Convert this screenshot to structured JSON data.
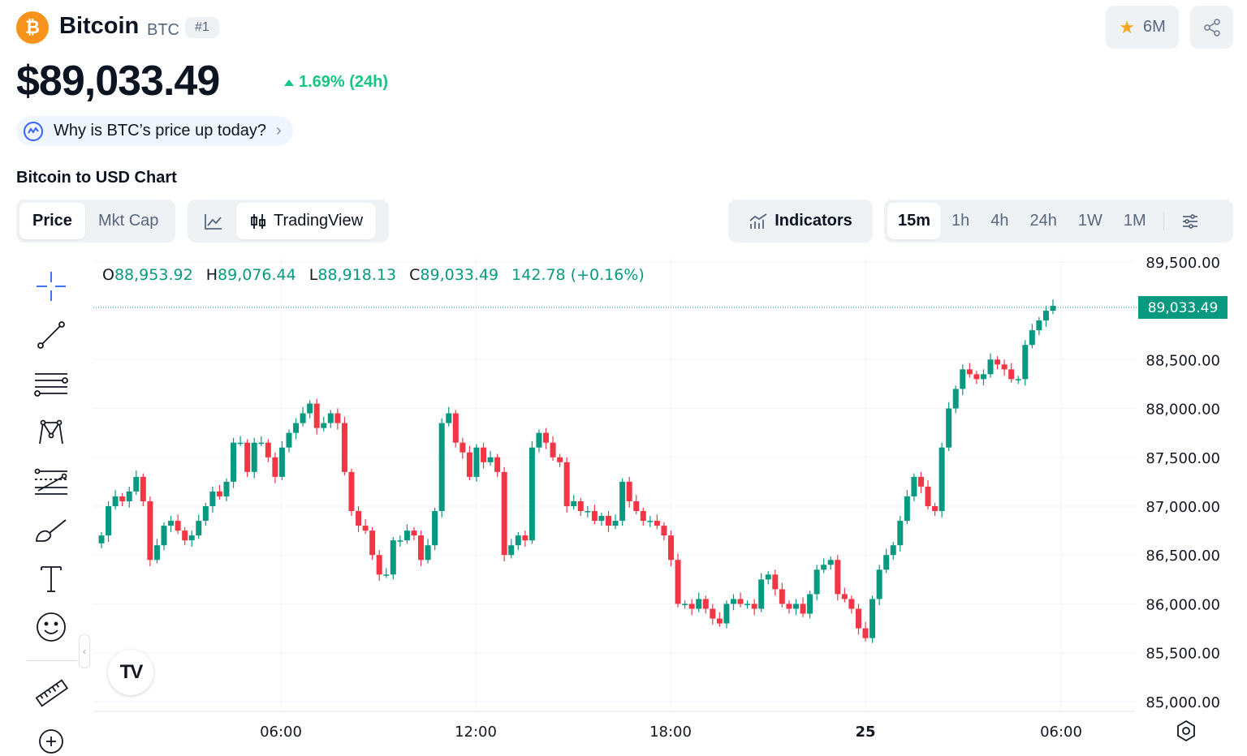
{
  "header": {
    "coin_logo_glyph": "₿",
    "coin_name": "Bitcoin",
    "coin_symbol": "BTC",
    "rank": "#1",
    "watchlist_count": "6M",
    "price": "$89,033.49",
    "change": "1.69% (24h)",
    "why_prompt": "Why is BTC’s price up today?"
  },
  "chart_heading": "Bitcoin to USD Chart",
  "toolbar": {
    "price_tabs": [
      "Price",
      "Mkt Cap"
    ],
    "tradingview_label": "TradingView",
    "indicators_label": "Indicators",
    "timeframes": [
      "15m",
      "1h",
      "4h",
      "24h",
      "1W",
      "1M"
    ]
  },
  "ohlc": {
    "o_label": "O",
    "o": "88,953.92",
    "h_label": "H",
    "h": "89,076.44",
    "l_label": "L",
    "l": "88,918.13",
    "c_label": "C",
    "c": "89,033.49",
    "change": "142.78 (+0.16%)"
  },
  "colors": {
    "up": "#089981",
    "down": "#f23645",
    "accent_green": "#16c784",
    "brand_orange": "#f7931a"
  },
  "tv_logo_text": "TV",
  "chart_data": {
    "type": "candlestick",
    "interval": "15m",
    "x_ticks": [
      "06:00",
      "12:00",
      "18:00",
      "25",
      "06:00"
    ],
    "y_ticks": [
      "89,500.00",
      "88,500.00",
      "88,000.00",
      "87,500.00",
      "87,000.00",
      "86,500.00",
      "86,000.00",
      "85,500.00",
      "85,000.00"
    ],
    "ylim": [
      84900,
      89540
    ],
    "last_price_label": "89,033.49",
    "last_price": 89033.49,
    "closes": [
      86700,
      87000,
      87100,
      87050,
      87150,
      87300,
      87050,
      86450,
      86600,
      86800,
      86850,
      86750,
      86650,
      86700,
      86850,
      87000,
      87150,
      87100,
      87250,
      87650,
      87650,
      87350,
      87650,
      87650,
      87500,
      87300,
      87600,
      87750,
      87850,
      87950,
      88050,
      87800,
      87850,
      87950,
      87850,
      87350,
      86950,
      86800,
      86750,
      86500,
      86300,
      86300,
      86650,
      86650,
      86750,
      86700,
      86450,
      86600,
      86950,
      87850,
      87950,
      87650,
      87550,
      87300,
      87600,
      87450,
      87500,
      87350,
      86500,
      86600,
      86700,
      86650,
      87600,
      87750,
      87650,
      87500,
      87450,
      87000,
      87050,
      86950,
      86950,
      86850,
      86900,
      86800,
      86850,
      87250,
      87050,
      86950,
      86850,
      86850,
      86800,
      86700,
      86450,
      86000,
      86000,
      85950,
      86050,
      85950,
      85850,
      85800,
      86000,
      86050,
      86000,
      86000,
      85950,
      86250,
      86300,
      86150,
      86000,
      85950,
      86000,
      85900,
      86100,
      86350,
      86400,
      86450,
      86100,
      86050,
      85950,
      85750,
      85650,
      86050,
      86350,
      86500,
      86600,
      86850,
      87100,
      87300,
      87200,
      87000,
      86950,
      87600,
      88000,
      88200,
      88400,
      88350,
      88300,
      88350,
      88500,
      88450,
      88400,
      88300,
      88300,
      88650,
      88800,
      88900,
      89000,
      89050
    ]
  }
}
